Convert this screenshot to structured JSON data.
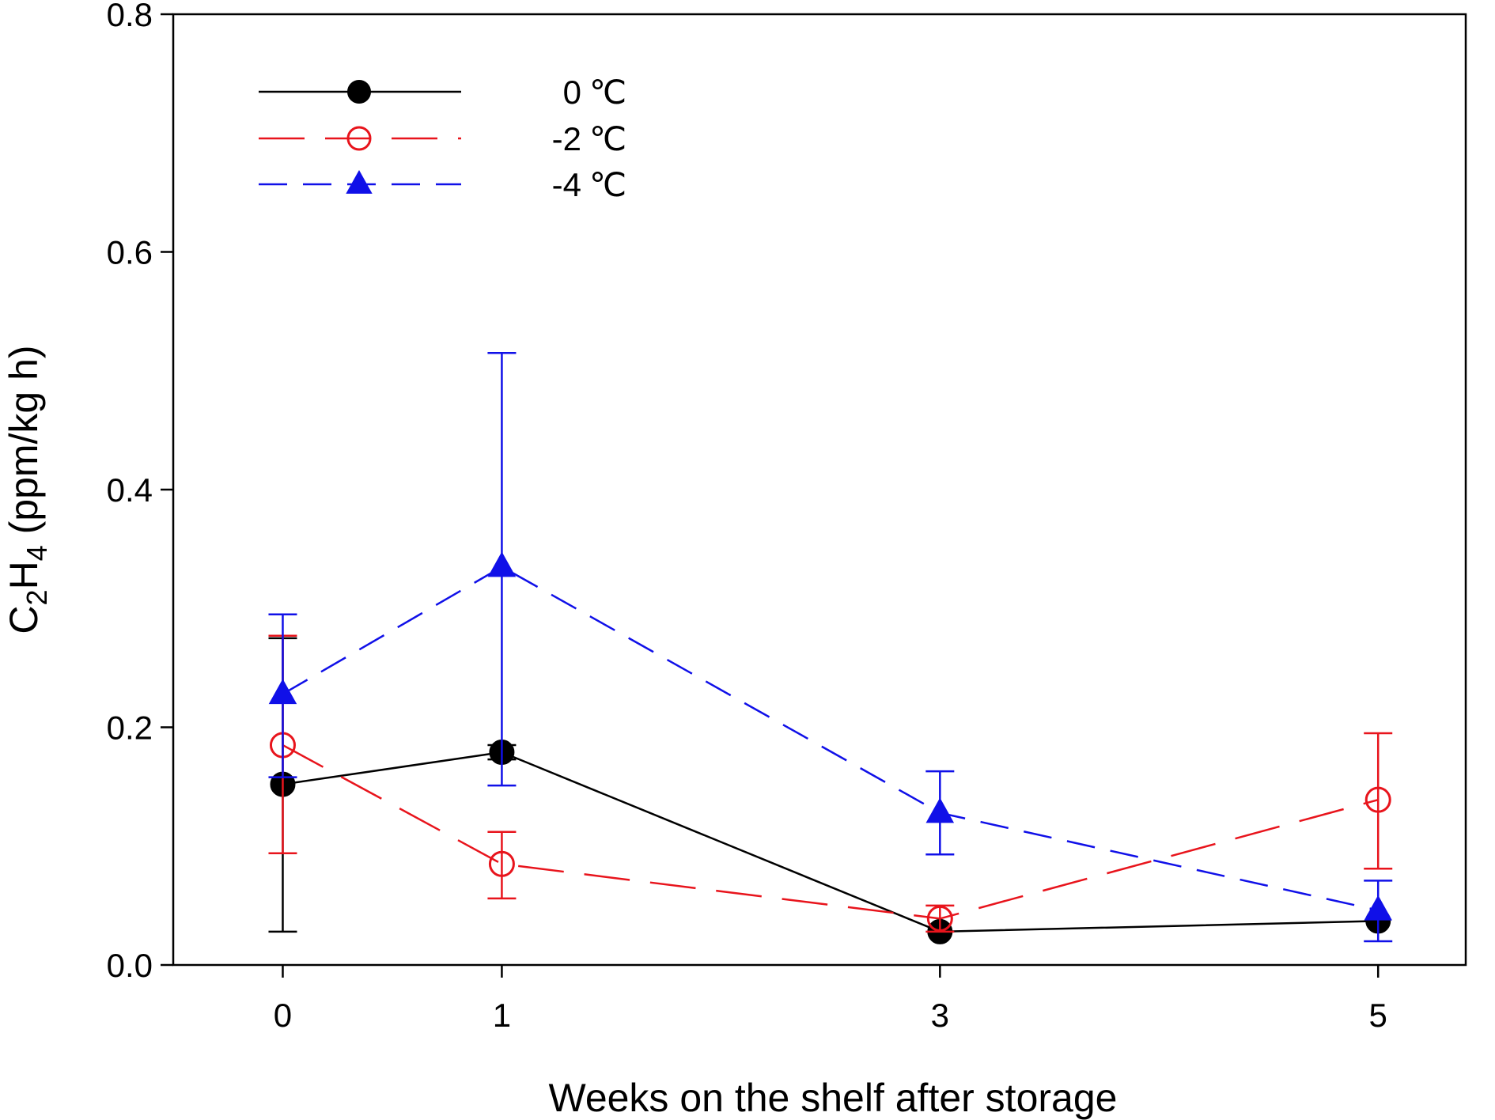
{
  "chart_data": {
    "type": "line",
    "title": "",
    "xlabel": "Weeks on the shelf after storage",
    "ylabel": {
      "prefix": "C",
      "sub1": "2",
      "mid": "H",
      "sub2": "4",
      "suffix": " (ppm/kg h)"
    },
    "x": [
      0,
      1,
      3,
      5
    ],
    "x_tick_labels": [
      "0",
      "1",
      "3",
      "5"
    ],
    "xlim": [
      -0.5,
      5.4
    ],
    "ylim": [
      0,
      0.8
    ],
    "y_ticks": [
      0.0,
      0.2,
      0.4,
      0.6,
      0.8
    ],
    "y_tick_labels": [
      "0.0",
      "0.2",
      "0.4",
      "0.6",
      "0.8"
    ],
    "legend_position": "top-left",
    "series": [
      {
        "name": "0",
        "unit": "℃",
        "color": "#000000",
        "marker": "filled-circle",
        "line": "solid",
        "values": [
          0.152,
          0.179,
          0.028,
          0.037
        ],
        "err_upper": [
          0.275,
          0.185,
          0.028,
          0.037
        ],
        "err_lower": [
          0.028,
          0.173,
          0.028,
          0.037
        ]
      },
      {
        "name": "-2",
        "unit": "℃",
        "color": "#e8141c",
        "marker": "open-circle",
        "line": "long-dash",
        "values": [
          0.185,
          0.085,
          0.039,
          0.139
        ],
        "err_upper": [
          0.277,
          0.112,
          0.05,
          0.195
        ],
        "err_lower": [
          0.094,
          0.056,
          0.028,
          0.081
        ]
      },
      {
        "name": "-4",
        "unit": "℃",
        "color": "#1010e8",
        "marker": "filled-triangle",
        "line": "medium-dash",
        "values": [
          0.228,
          0.335,
          0.128,
          0.046
        ],
        "err_upper": [
          0.295,
          0.515,
          0.163,
          0.071
        ],
        "err_lower": [
          0.158,
          0.151,
          0.093,
          0.02
        ]
      }
    ]
  }
}
